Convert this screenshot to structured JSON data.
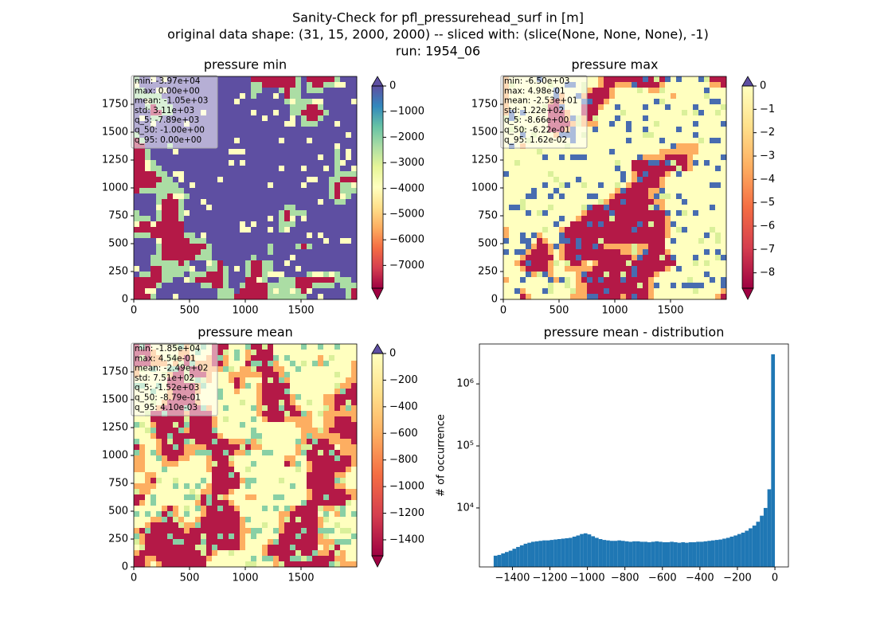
{
  "title_lines": [
    "Sanity-Check for pfl_pressurehead_surf in [m]",
    "original data shape: (31, 15, 2000, 2000) -- sliced with: (slice(None, None, None), -1)",
    "run: 1954_06"
  ],
  "colormap": [
    "#9e0142",
    "#d53e4f",
    "#f46d43",
    "#fdae61",
    "#fee08b",
    "#ffffbf",
    "#e6f598",
    "#abdda4",
    "#66c2a5",
    "#3288bd",
    "#5e4fa2"
  ],
  "chart_data": [
    {
      "type": "heatmap",
      "title": "pressure min",
      "xlim": [
        0,
        2000
      ],
      "ylim": [
        0,
        2000
      ],
      "xticks": [
        0,
        500,
        1000,
        1500
      ],
      "yticks": [
        0,
        250,
        500,
        750,
        1000,
        1250,
        1500,
        1750
      ],
      "colorbar": {
        "lim": [
          -7890,
          0
        ],
        "ticks": [
          0,
          {
            "value": -1000,
            "label": "−1000"
          },
          {
            "value": -2000,
            "label": "−2000"
          },
          {
            "value": -3000,
            "label": "−3000"
          },
          {
            "value": -4000,
            "label": "−4000"
          },
          {
            "value": -5000,
            "label": "−5000"
          },
          {
            "value": -6000,
            "label": "−6000"
          },
          {
            "value": -7000,
            "label": "−7000"
          }
        ]
      },
      "stats": [
        "min: -3.97e+04",
        "max: 0.00e+00",
        "mean: -1.05e+03",
        "std: 3.11e+03",
        "q_5: -7.89e+03",
        "q_50: -1.00e+00",
        "q_95: 0.00e+00"
      ]
    },
    {
      "type": "heatmap",
      "title": "pressure max",
      "xlim": [
        0,
        2000
      ],
      "ylim": [
        0,
        2000
      ],
      "xticks": [
        0,
        500,
        1000,
        1500
      ],
      "yticks": [
        0,
        250,
        500,
        750,
        1000,
        1250,
        1500,
        1750
      ],
      "colorbar": {
        "lim": [
          -8.66,
          0
        ],
        "ticks": [
          0,
          {
            "value": -1,
            "label": "−1"
          },
          {
            "value": -2,
            "label": "−2"
          },
          {
            "value": -3,
            "label": "−3"
          },
          {
            "value": -4,
            "label": "−4"
          },
          {
            "value": -5,
            "label": "−5"
          },
          {
            "value": -6,
            "label": "−6"
          },
          {
            "value": -7,
            "label": "−7"
          },
          {
            "value": -8,
            "label": "−8"
          }
        ]
      },
      "stats": [
        "min: -6.50e+03",
        "max: 4.98e-01",
        "mean: -2.53e+01",
        "std: 1.22e+02",
        "q_5: -8.66e+00",
        "q_50: -6.22e-01",
        "q_95: 1.62e-02"
      ]
    },
    {
      "type": "heatmap",
      "title": "pressure mean",
      "xlim": [
        0,
        2000
      ],
      "ylim": [
        0,
        2000
      ],
      "xticks": [
        0,
        500,
        1000,
        1500
      ],
      "yticks": [
        0,
        250,
        500,
        750,
        1000,
        1250,
        1500,
        1750
      ],
      "colorbar": {
        "lim": [
          -1520,
          0
        ],
        "ticks": [
          0,
          {
            "value": -200,
            "label": "−200"
          },
          {
            "value": -400,
            "label": "−400"
          },
          {
            "value": -600,
            "label": "−600"
          },
          {
            "value": -800,
            "label": "−800"
          },
          {
            "value": -1000,
            "label": "−1000"
          },
          {
            "value": -1200,
            "label": "−1200"
          },
          {
            "value": -1400,
            "label": "−1400"
          }
        ]
      },
      "stats": [
        "min: -1.85e+04",
        "max: 4.54e-01",
        "mean: -2.49e+02",
        "std: 7.51e+02",
        "q_5: -1.52e+03",
        "q_50: -8.79e-01",
        "q_95: 4.10e-03"
      ]
    },
    {
      "type": "histogram",
      "title": "pressure mean - distribution",
      "ylabel": "# of occurrence",
      "color": "#1f77b4",
      "log_y": true,
      "bins": [
        -1500,
        -1480,
        -1460,
        -1440,
        -1420,
        -1400,
        -1380,
        -1360,
        -1340,
        -1320,
        -1300,
        -1280,
        -1260,
        -1240,
        -1220,
        -1200,
        -1180,
        -1160,
        -1140,
        -1120,
        -1100,
        -1080,
        -1060,
        -1040,
        -1020,
        -1000,
        -980,
        -960,
        -940,
        -920,
        -900,
        -880,
        -860,
        -840,
        -820,
        -800,
        -780,
        -760,
        -740,
        -720,
        -700,
        -680,
        -660,
        -640,
        -620,
        -600,
        -580,
        -560,
        -540,
        -520,
        -500,
        -480,
        -460,
        -440,
        -420,
        -400,
        -380,
        -360,
        -340,
        -320,
        -300,
        -280,
        -260,
        -240,
        -220,
        -200,
        -180,
        -160,
        -140,
        -120,
        -100,
        -80,
        -60,
        -40,
        -20,
        0
      ],
      "counts": [
        1700,
        1750,
        1850,
        1950,
        2050,
        2200,
        2350,
        2500,
        2650,
        2750,
        2850,
        2900,
        2950,
        3000,
        3000,
        3050,
        3100,
        3150,
        3200,
        3250,
        3300,
        3450,
        3600,
        3800,
        3900,
        3750,
        3500,
        3300,
        3150,
        3050,
        3000,
        2950,
        2950,
        3000,
        2950,
        2900,
        2850,
        2900,
        2900,
        2850,
        2850,
        2800,
        2850,
        2900,
        2850,
        2800,
        2800,
        2850,
        2800,
        2750,
        2800,
        2750,
        2800,
        2800,
        2850,
        2850,
        2900,
        2950,
        3000,
        3050,
        3100,
        3200,
        3300,
        3450,
        3600,
        3800,
        4000,
        4300,
        4700,
        5200,
        6000,
        7500,
        10000,
        20000,
        3000000
      ],
      "xlim": [
        -1576,
        72
      ],
      "ylim": [
        1120,
        4400000
      ],
      "xticks": [
        {
          "value": -1400,
          "label": "−1400"
        },
        {
          "value": -1200,
          "label": "−1200"
        },
        {
          "value": -1000,
          "label": "−1000"
        },
        {
          "value": -800,
          "label": "−800"
        },
        {
          "value": -600,
          "label": "−600"
        },
        {
          "value": -400,
          "label": "−400"
        },
        {
          "value": -200,
          "label": "−200"
        },
        0
      ],
      "yticks": [
        {
          "value": 10000,
          "label": "10⁴"
        },
        {
          "value": 100000,
          "label": "10⁵"
        },
        {
          "value": 1000000,
          "label": "10⁶"
        }
      ]
    }
  ]
}
